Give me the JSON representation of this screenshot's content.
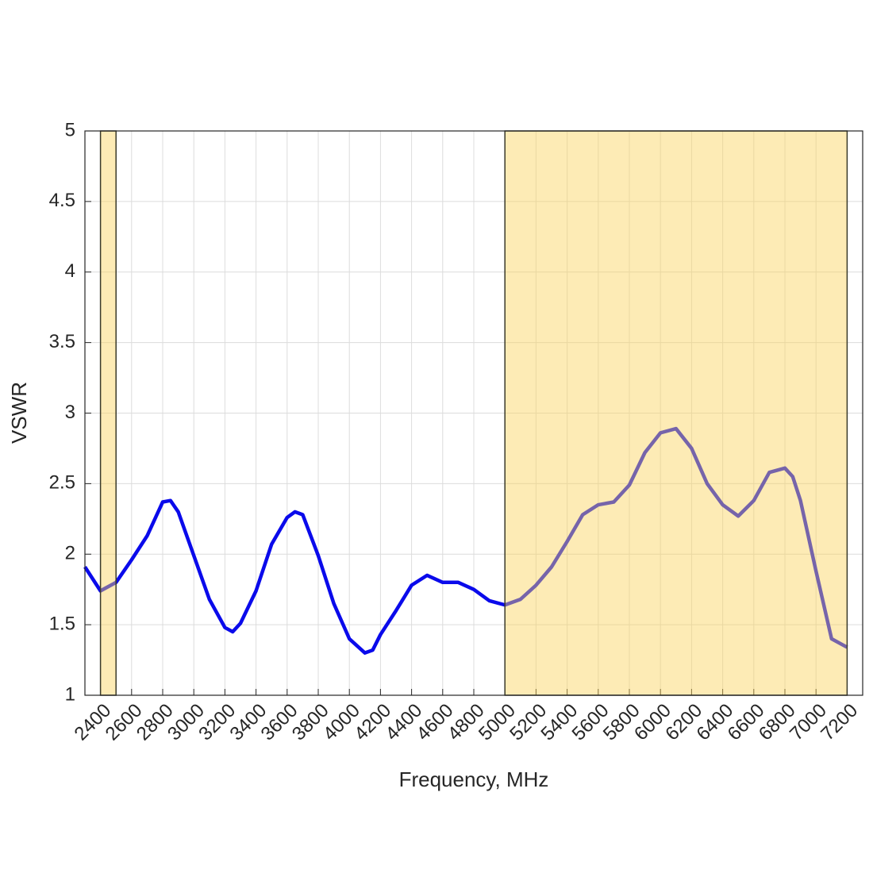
{
  "chart_data": {
    "type": "line",
    "xlabel": "Frequency, MHz",
    "ylabel": "VSWR",
    "x": [
      2300,
      2400,
      2500,
      2600,
      2700,
      2800,
      2850,
      2900,
      3000,
      3100,
      3200,
      3250,
      3300,
      3400,
      3500,
      3600,
      3650,
      3700,
      3800,
      3900,
      4000,
      4100,
      4150,
      4200,
      4300,
      4400,
      4500,
      4600,
      4700,
      4800,
      4900,
      5000,
      5100,
      5200,
      5300,
      5400,
      5500,
      5600,
      5700,
      5800,
      5900,
      6000,
      6100,
      6200,
      6300,
      6400,
      6500,
      6600,
      6700,
      6800,
      6850,
      6900,
      7000,
      7100,
      7200
    ],
    "series": [
      {
        "color": "#0a0aeb",
        "values": [
          1.91,
          1.74,
          1.8,
          1.96,
          2.13,
          2.37,
          2.38,
          2.3,
          1.99,
          1.68,
          1.48,
          1.45,
          1.51,
          1.74,
          2.07,
          2.26,
          2.3,
          2.28,
          1.99,
          1.65,
          1.4,
          1.3,
          1.32,
          1.43,
          1.6,
          1.78,
          1.85,
          1.8,
          1.8,
          1.75,
          1.67,
          1.64,
          1.68,
          1.78,
          1.91,
          2.09,
          2.28,
          2.35,
          2.37,
          2.49,
          2.72,
          2.86,
          2.89,
          2.75,
          2.5,
          2.35,
          2.27,
          2.38,
          2.58,
          2.61,
          2.55,
          2.38,
          1.88,
          1.4,
          1.34
        ]
      }
    ],
    "bands": [
      [
        2400,
        2500
      ],
      [
        5000,
        7200
      ]
    ],
    "band_color": "#fbd25a",
    "xlim": [
      2300,
      7300
    ],
    "xticks": [
      2400,
      2600,
      2800,
      3000,
      3200,
      3400,
      3600,
      3800,
      4000,
      4200,
      4400,
      4600,
      4800,
      5000,
      5200,
      5400,
      5600,
      5800,
      6000,
      6200,
      6400,
      6600,
      6800,
      7000,
      7200
    ],
    "ylim": [
      1,
      5
    ],
    "yticks": [
      1,
      1.5,
      2,
      2.5,
      3,
      3.5,
      4,
      4.5,
      5
    ],
    "grid": true
  }
}
